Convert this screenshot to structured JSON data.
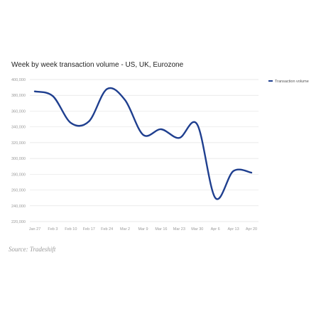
{
  "title": "Week by week transaction volume - US, UK, Eurozone",
  "source": "Source: Tradeshift",
  "chart_data": {
    "type": "line",
    "title": "Week by week transaction volume - US, UK, Eurozone",
    "xlabel": "",
    "ylabel": "",
    "ylim": [
      220000,
      400000
    ],
    "yticks": [
      "220,000",
      "240,000",
      "260,000",
      "280,000",
      "300,000",
      "320,000",
      "340,000",
      "360,000",
      "380,000",
      "400,000"
    ],
    "ytick_values": [
      220000,
      240000,
      260000,
      280000,
      300000,
      320000,
      340000,
      360000,
      380000,
      400000
    ],
    "categories": [
      "Jan 27",
      "Feb 3",
      "Feb 10",
      "Feb 17",
      "Feb 24",
      "Mar 2",
      "Mar 9",
      "Mar 16",
      "Mar 23",
      "Mar 30",
      "Apr 6",
      "Apr 13",
      "Apr 20"
    ],
    "grid": true,
    "legend": "top-right",
    "color": "#1f3f8f",
    "series": [
      {
        "name": "Transaction volume",
        "values": [
          385000,
          379000,
          345000,
          347000,
          388000,
          374000,
          330000,
          337000,
          326000,
          343000,
          250000,
          284000,
          282000
        ]
      }
    ]
  }
}
